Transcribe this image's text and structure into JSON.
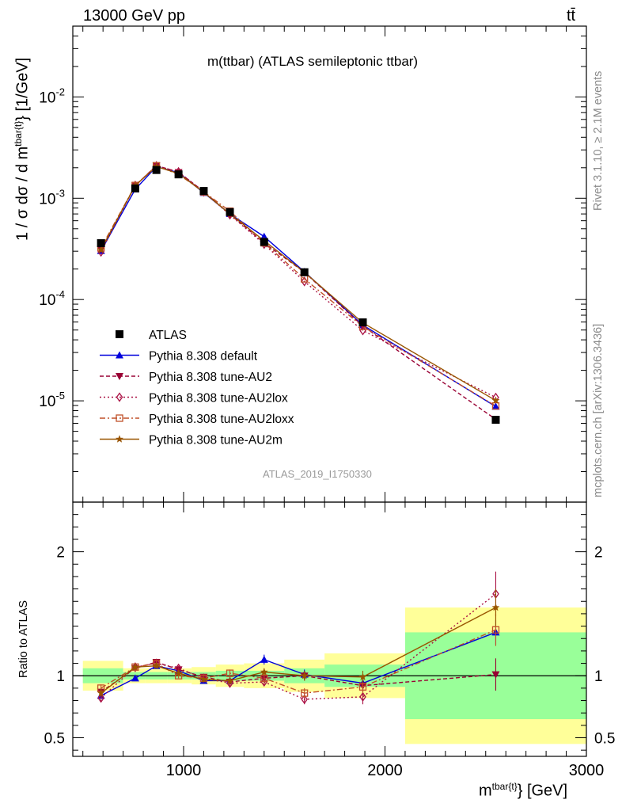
{
  "header": {
    "energy_label": "13000 GeV pp",
    "process_label": "tt̄",
    "plot_title": "m(ttbar) (ATLAS semileptonic ttbar)",
    "analysis_id": "ATLAS_2019_I1750330",
    "rivet_label": "Rivet 3.1.10, ≥ 2.1M events",
    "site_label": "mcplots.cern.ch [arXiv:1306.3436]"
  },
  "axes": {
    "y_main_label": "1 / σ dσ / d m",
    "y_main_sup": "tbar{t}",
    "y_main_unit": "} [1/GeV]",
    "y_ratio_label": "Ratio to ATLAS",
    "x_label_main": "m",
    "x_label_sup": "tbar{t}",
    "x_label_unit": "} [GeV]"
  },
  "legend": [
    {
      "label": "ATLAS",
      "color": "#000000",
      "marker": "square",
      "dash": ""
    },
    {
      "label": "Pythia 8.308 default",
      "color": "#0000dd",
      "marker": "triangle-up",
      "dash": ""
    },
    {
      "label": "Pythia 8.308 tune-AU2",
      "color": "#990033",
      "marker": "triangle-down",
      "dash": "5,3"
    },
    {
      "label": "Pythia 8.308 tune-AU2lox",
      "color": "#aa1144",
      "marker": "diamond-open",
      "dash": "2,3"
    },
    {
      "label": "Pythia 8.308 tune-AU2loxx",
      "color": "#c0502a",
      "marker": "square-open",
      "dash": "7,3,2,3"
    },
    {
      "label": "Pythia 8.308 tune-AU2m",
      "color": "#995500",
      "marker": "star",
      "dash": ""
    }
  ],
  "chart_data": {
    "type": "line",
    "xlim": [
      450,
      3000
    ],
    "ylim_main": [
      1e-06,
      0.05
    ],
    "y_scale_main": "log",
    "ylim_ratio": [
      0.35,
      2.4
    ],
    "x_ticks": [
      "1000",
      "2000",
      "3000"
    ],
    "y_main_ticks": [
      "10^-5",
      "10^-4",
      "10^-3",
      "10^-2"
    ],
    "y_ratio_ticks": [
      "0.5",
      "1",
      "2"
    ],
    "bins": [
      {
        "lo": 500,
        "hi": 700,
        "x": 590
      },
      {
        "lo": 700,
        "hi": 810,
        "x": 760
      },
      {
        "lo": 810,
        "hi": 920,
        "x": 865
      },
      {
        "lo": 920,
        "hi": 1040,
        "x": 975
      },
      {
        "lo": 1040,
        "hi": 1160,
        "x": 1100
      },
      {
        "lo": 1160,
        "hi": 1300,
        "x": 1230
      },
      {
        "lo": 1300,
        "hi": 1500,
        "x": 1400
      },
      {
        "lo": 1500,
        "hi": 1700,
        "x": 1600
      },
      {
        "lo": 1700,
        "hi": 2100,
        "x": 1890
      },
      {
        "lo": 2100,
        "hi": 3000,
        "x": 2550
      }
    ],
    "data": {
      "name": "ATLAS",
      "values": [
        0.00036,
        0.00125,
        0.0019,
        0.00172,
        0.00118,
        0.00073,
        0.00037,
        0.000186,
        5.95e-05,
        6.5e-06
      ],
      "band_stat": [
        0.06,
        0.03,
        0.03,
        0.03,
        0.03,
        0.04,
        0.04,
        0.06,
        0.09,
        0.35
      ],
      "band_total": [
        0.12,
        0.06,
        0.06,
        0.06,
        0.07,
        0.09,
        0.1,
        0.13,
        0.18,
        0.55
      ]
    },
    "series": [
      {
        "name": "Pythia 8.308 default",
        "x": [
          590,
          760,
          865,
          975,
          1100,
          1230,
          1400,
          1600,
          1890,
          2550
        ],
        "ratio": [
          0.84,
          0.98,
          1.08,
          1.04,
          0.96,
          0.96,
          1.13,
          1.01,
          0.94,
          1.35
        ],
        "err": [
          0.02,
          0.02,
          0.02,
          0.02,
          0.02,
          0.03,
          0.04,
          0.04,
          0.05,
          0.1
        ]
      },
      {
        "name": "Pythia 8.308 tune-AU2",
        "x": [
          590,
          760,
          865,
          975,
          1100,
          1230,
          1400,
          1600,
          1890,
          2550
        ],
        "ratio": [
          0.87,
          1.06,
          1.11,
          1.05,
          0.99,
          0.95,
          0.98,
          1.0,
          0.92,
          1.01
        ],
        "err": [
          0.03,
          0.02,
          0.02,
          0.02,
          0.02,
          0.03,
          0.03,
          0.04,
          0.05,
          0.13
        ]
      },
      {
        "name": "Pythia 8.308 tune-AU2lox",
        "x": [
          590,
          760,
          865,
          975,
          1100,
          1230,
          1400,
          1600,
          1890,
          2550
        ],
        "ratio": [
          0.82,
          1.07,
          1.1,
          1.06,
          0.98,
          0.94,
          0.95,
          0.81,
          0.83,
          1.66
        ],
        "err": [
          0.03,
          0.02,
          0.02,
          0.02,
          0.02,
          0.03,
          0.03,
          0.04,
          0.06,
          0.18
        ]
      },
      {
        "name": "Pythia 8.308 tune-AU2loxx",
        "x": [
          590,
          760,
          865,
          975,
          1100,
          1230,
          1400,
          1600,
          1890,
          2550
        ],
        "ratio": [
          0.9,
          1.07,
          1.1,
          1.0,
          0.98,
          1.02,
          0.98,
          0.86,
          0.91,
          1.37
        ],
        "err": [
          0.03,
          0.02,
          0.02,
          0.02,
          0.02,
          0.03,
          0.03,
          0.04,
          0.05,
          0.13
        ]
      },
      {
        "name": "Pythia 8.308 tune-AU2m",
        "x": [
          590,
          760,
          865,
          975,
          1100,
          1230,
          1400,
          1600,
          1890,
          2550
        ],
        "ratio": [
          0.86,
          1.07,
          1.08,
          1.02,
          0.97,
          0.96,
          1.03,
          1.0,
          0.99,
          1.55
        ],
        "err": [
          0.03,
          0.02,
          0.02,
          0.02,
          0.02,
          0.03,
          0.03,
          0.04,
          0.05,
          0.15
        ]
      }
    ]
  }
}
